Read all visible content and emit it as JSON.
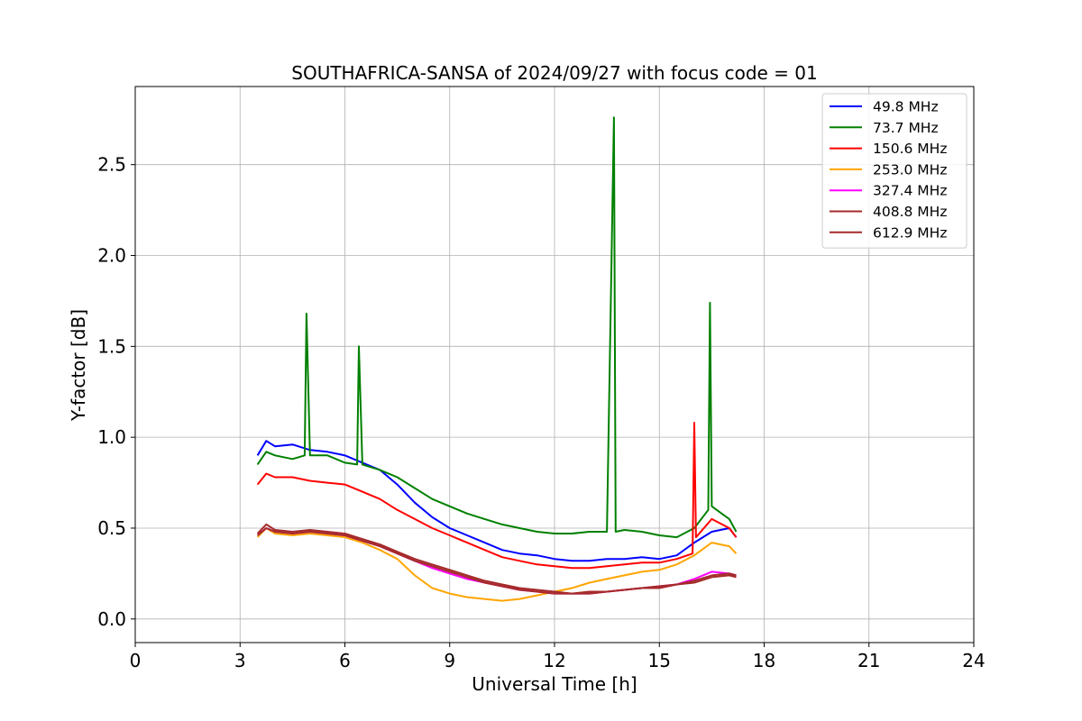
{
  "chart_data": {
    "type": "line",
    "title": "SOUTHAFRICA-SANSA of 2024/09/27 with focus code = 01",
    "xlabel": "Universal Time [h]",
    "ylabel": "Y-factor [dB]",
    "xlim": [
      0,
      24
    ],
    "ylim": [
      -0.13,
      2.93
    ],
    "xticks": [
      0,
      3,
      6,
      9,
      12,
      15,
      18,
      21,
      24
    ],
    "xtick_labels": [
      "0",
      "3",
      "6",
      "9",
      "12",
      "15",
      "18",
      "21",
      "24"
    ],
    "yticks": [
      0.0,
      0.5,
      1.0,
      1.5,
      2.0,
      2.5
    ],
    "ytick_labels": [
      "0.0",
      "0.5",
      "1.0",
      "1.5",
      "2.0",
      "2.5"
    ],
    "grid": true,
    "legend_position": "top-right",
    "series": [
      {
        "name": " 49.8 MHz",
        "color": "#0000ff",
        "x": [
          3.5,
          3.75,
          4.0,
          4.5,
          5.0,
          5.5,
          6.0,
          6.5,
          7.0,
          7.5,
          8.0,
          8.5,
          9.0,
          9.5,
          10.0,
          10.5,
          11.0,
          11.5,
          12.0,
          12.5,
          13.0,
          13.5,
          14.0,
          14.5,
          15.0,
          15.5,
          16.0,
          16.5,
          17.0,
          17.2
        ],
        "y": [
          0.9,
          0.98,
          0.95,
          0.96,
          0.93,
          0.92,
          0.9,
          0.86,
          0.82,
          0.74,
          0.64,
          0.56,
          0.5,
          0.46,
          0.42,
          0.38,
          0.36,
          0.35,
          0.33,
          0.32,
          0.32,
          0.33,
          0.33,
          0.34,
          0.33,
          0.35,
          0.42,
          0.48,
          0.5,
          0.45
        ]
      },
      {
        "name": " 73.7 MHz",
        "color": "#008000",
        "x": [
          3.5,
          3.75,
          4.0,
          4.5,
          4.85,
          4.9,
          5.0,
          5.5,
          6.0,
          6.35,
          6.4,
          6.5,
          7.0,
          7.5,
          8.0,
          8.5,
          9.0,
          9.5,
          10.0,
          10.5,
          11.0,
          11.5,
          12.0,
          12.5,
          13.0,
          13.5,
          13.7,
          13.75,
          14.0,
          14.5,
          15.0,
          15.5,
          16.0,
          16.4,
          16.45,
          16.5,
          17.0,
          17.2
        ],
        "y": [
          0.85,
          0.92,
          0.9,
          0.88,
          0.9,
          1.68,
          0.9,
          0.9,
          0.86,
          0.85,
          1.5,
          0.85,
          0.82,
          0.78,
          0.72,
          0.66,
          0.62,
          0.58,
          0.55,
          0.52,
          0.5,
          0.48,
          0.47,
          0.47,
          0.48,
          0.48,
          2.76,
          0.48,
          0.49,
          0.48,
          0.46,
          0.45,
          0.5,
          0.6,
          1.74,
          0.62,
          0.55,
          0.48
        ]
      },
      {
        "name": " 150.6 MHz",
        "color": "#ff0000",
        "x": [
          3.5,
          3.75,
          4.0,
          4.5,
          5.0,
          5.5,
          6.0,
          6.5,
          7.0,
          7.5,
          8.0,
          8.5,
          9.0,
          9.5,
          10.0,
          10.5,
          11.0,
          11.5,
          12.0,
          12.5,
          13.0,
          13.5,
          14.0,
          14.5,
          15.0,
          15.5,
          15.95,
          16.0,
          16.05,
          16.5,
          17.0,
          17.2
        ],
        "y": [
          0.74,
          0.8,
          0.78,
          0.78,
          0.76,
          0.75,
          0.74,
          0.7,
          0.66,
          0.6,
          0.55,
          0.5,
          0.46,
          0.42,
          0.38,
          0.34,
          0.32,
          0.3,
          0.29,
          0.28,
          0.28,
          0.29,
          0.3,
          0.31,
          0.31,
          0.33,
          0.36,
          1.08,
          0.45,
          0.55,
          0.5,
          0.45
        ]
      },
      {
        "name": " 253.0 MHz",
        "color": "#ffa500",
        "x": [
          3.5,
          3.75,
          4.0,
          4.5,
          5.0,
          5.5,
          6.0,
          6.5,
          7.0,
          7.5,
          8.0,
          8.5,
          9.0,
          9.5,
          10.0,
          10.5,
          11.0,
          11.5,
          12.0,
          12.5,
          13.0,
          13.5,
          14.0,
          14.5,
          15.0,
          15.5,
          16.0,
          16.5,
          17.0,
          17.2
        ],
        "y": [
          0.45,
          0.5,
          0.47,
          0.46,
          0.47,
          0.46,
          0.45,
          0.42,
          0.38,
          0.33,
          0.24,
          0.17,
          0.14,
          0.12,
          0.11,
          0.1,
          0.11,
          0.13,
          0.15,
          0.17,
          0.2,
          0.22,
          0.24,
          0.26,
          0.27,
          0.3,
          0.35,
          0.42,
          0.4,
          0.36
        ]
      },
      {
        "name": " 327.4 MHz",
        "color": "#ff00ff",
        "x": [
          3.5,
          3.75,
          4.0,
          4.5,
          5.0,
          5.5,
          6.0,
          6.5,
          7.0,
          7.5,
          8.0,
          8.5,
          9.0,
          9.5,
          10.0,
          10.5,
          11.0,
          11.5,
          12.0,
          12.5,
          13.0,
          13.5,
          14.0,
          14.5,
          15.0,
          15.5,
          16.0,
          16.5,
          17.0,
          17.2
        ],
        "y": [
          0.46,
          0.5,
          0.48,
          0.47,
          0.48,
          0.47,
          0.46,
          0.43,
          0.4,
          0.36,
          0.32,
          0.28,
          0.25,
          0.22,
          0.2,
          0.18,
          0.16,
          0.15,
          0.14,
          0.14,
          0.14,
          0.15,
          0.16,
          0.17,
          0.18,
          0.19,
          0.22,
          0.26,
          0.25,
          0.24
        ]
      },
      {
        "name": " 408.8 MHz",
        "color": "#a52a2a",
        "x": [
          3.5,
          3.75,
          4.0,
          4.5,
          5.0,
          5.5,
          6.0,
          6.5,
          7.0,
          7.5,
          8.0,
          8.5,
          9.0,
          9.5,
          10.0,
          10.5,
          11.0,
          11.5,
          12.0,
          12.5,
          13.0,
          13.5,
          14.0,
          14.5,
          15.0,
          15.5,
          16.0,
          16.5,
          17.0,
          17.2
        ],
        "y": [
          0.47,
          0.52,
          0.49,
          0.48,
          0.49,
          0.48,
          0.47,
          0.44,
          0.41,
          0.37,
          0.33,
          0.3,
          0.27,
          0.24,
          0.21,
          0.19,
          0.17,
          0.16,
          0.15,
          0.14,
          0.15,
          0.15,
          0.16,
          0.17,
          0.18,
          0.19,
          0.21,
          0.24,
          0.25,
          0.24
        ]
      },
      {
        "name": " 612.9 MHz",
        "color": "#a52a2a",
        "x": [
          3.5,
          3.75,
          4.0,
          4.5,
          5.0,
          5.5,
          6.0,
          6.5,
          7.0,
          7.5,
          8.0,
          8.5,
          9.0,
          9.5,
          10.0,
          10.5,
          11.0,
          11.5,
          12.0,
          12.5,
          13.0,
          13.5,
          14.0,
          14.5,
          15.0,
          15.5,
          16.0,
          16.5,
          17.0,
          17.2
        ],
        "y": [
          0.46,
          0.5,
          0.48,
          0.47,
          0.48,
          0.47,
          0.46,
          0.43,
          0.4,
          0.36,
          0.32,
          0.29,
          0.26,
          0.23,
          0.2,
          0.18,
          0.16,
          0.15,
          0.14,
          0.14,
          0.14,
          0.15,
          0.16,
          0.17,
          0.17,
          0.19,
          0.2,
          0.23,
          0.24,
          0.23
        ]
      }
    ]
  }
}
